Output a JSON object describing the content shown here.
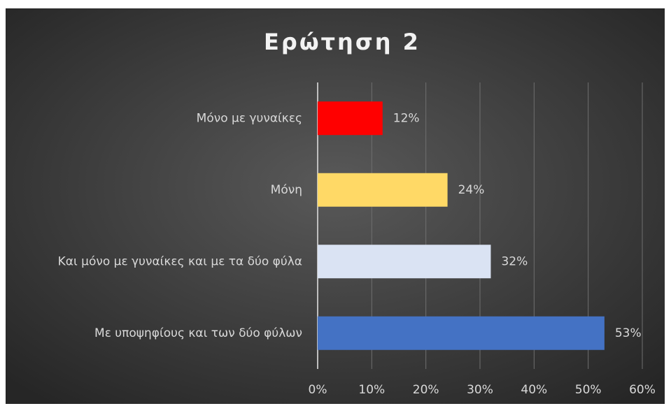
{
  "chart_data": {
    "type": "hbar",
    "title": "Ερώτηση 2",
    "categories": [
      "Μόνο με γυναίκες",
      "Μόνη",
      "Και μόνο με γυναίκες και με τα δύο φύλα",
      "Με υποψηφίους και των δύο φύλων"
    ],
    "values": [
      12,
      24,
      32,
      53
    ],
    "value_labels": [
      "12%",
      "24%",
      "32%",
      "53%"
    ],
    "colors": [
      "#ff0000",
      "#ffd966",
      "#dae3f3",
      "#4472c4"
    ],
    "xlim": [
      0,
      60
    ],
    "xticks": [
      {
        "value": 0,
        "label": "0%"
      },
      {
        "value": 10,
        "label": "10%"
      },
      {
        "value": 20,
        "label": "20%"
      },
      {
        "value": 30,
        "label": "30%"
      },
      {
        "value": 40,
        "label": "40%"
      },
      {
        "value": 50,
        "label": "50%"
      },
      {
        "value": 60,
        "label": "60%"
      }
    ],
    "grid": true
  }
}
